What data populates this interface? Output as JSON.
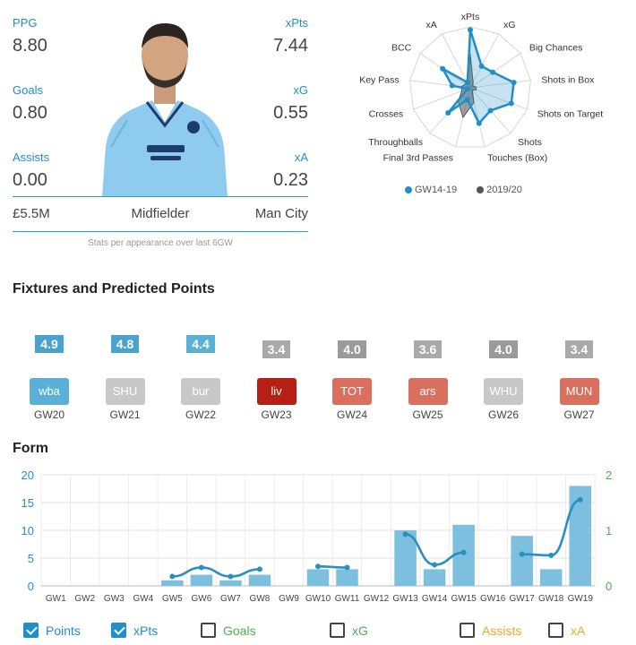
{
  "player": {
    "stats": {
      "ppg_label": "PPG",
      "ppg": "8.80",
      "xpts_label": "xPts",
      "xpts": "7.44",
      "goals_label": "Goals",
      "goals": "0.80",
      "xg_label": "xG",
      "xg": "0.55",
      "assists_label": "Assists",
      "assists": "0.00",
      "xa_label": "xA",
      "xa": "0.23"
    },
    "price": "£5.5M",
    "position": "Midfielder",
    "team": "Man City",
    "footnote": "Stats per appearance over last 6GW"
  },
  "radar": {
    "axes": [
      "xPts",
      "xG",
      "Big Chances",
      "Shots in Box",
      "Shots on Target",
      "Shots",
      "Touches (Box)",
      "Final 3rd Passes",
      "Throughballs",
      "Crosses",
      "Key Pass",
      "BCC",
      "xA"
    ],
    "series": [
      {
        "name": "GW14-19",
        "color": "#1f8ec9",
        "values": [
          0.95,
          0.4,
          0.45,
          0.72,
          0.72,
          0.5,
          0.6,
          0.2,
          0.55,
          0.05,
          0.3,
          0.55,
          0.1
        ]
      },
      {
        "name": "2019/20",
        "color": "#555555",
        "values": [
          0.55,
          0.1,
          0.05,
          0.1,
          0.1,
          0.05,
          0.25,
          0.5,
          0.3,
          0.15,
          0.15,
          0.1,
          0.1
        ]
      }
    ]
  },
  "fixtures_title": "Fixtures and Predicted Points",
  "fixtures": [
    {
      "pred": "4.9",
      "pred_color": "#4aa3cf",
      "opp": "wba",
      "opp_color": "#5ab0d6",
      "gw": "GW20"
    },
    {
      "pred": "4.8",
      "pred_color": "#4aa3cf",
      "opp": "SHU",
      "opp_color": "#c8c8c8",
      "gw": "GW21"
    },
    {
      "pred": "4.4",
      "pred_color": "#5bb0d6",
      "opp": "bur",
      "opp_color": "#c8c8c8",
      "gw": "GW22"
    },
    {
      "pred": "3.4",
      "pred_color": "#a9a9a9",
      "opp": "liv",
      "opp_color": "#b51f14",
      "gw": "GW23"
    },
    {
      "pred": "4.0",
      "pred_color": "#9a9a9a",
      "opp": "TOT",
      "opp_color": "#d9705f",
      "gw": "GW24"
    },
    {
      "pred": "3.6",
      "pred_color": "#a9a9a9",
      "opp": "ars",
      "opp_color": "#d9705f",
      "gw": "GW25"
    },
    {
      "pred": "4.0",
      "pred_color": "#9a9a9a",
      "opp": "WHU",
      "opp_color": "#c8c8c8",
      "gw": "GW26"
    },
    {
      "pred": "3.4",
      "pred_color": "#a9a9a9",
      "opp": "MUN",
      "opp_color": "#d9705f",
      "gw": "GW27"
    }
  ],
  "form_title": "Form",
  "chart_data": {
    "type": "bar",
    "categories": [
      "GW1",
      "GW2",
      "GW3",
      "GW4",
      "GW5",
      "GW6",
      "GW7",
      "GW8",
      "GW9",
      "GW10",
      "GW11",
      "GW12",
      "GW13",
      "GW14",
      "GW15",
      "GW16",
      "GW17",
      "GW18",
      "GW19"
    ],
    "series": [
      {
        "name": "Points",
        "type": "bar",
        "color": "#6fb8db",
        "axis": "left",
        "values": [
          0,
          0,
          0,
          0,
          1,
          2,
          1,
          2,
          0,
          3,
          3,
          0,
          10,
          3,
          11,
          0,
          9,
          3,
          18
        ]
      },
      {
        "name": "xPts",
        "type": "line",
        "color": "#2a8fc0",
        "axis": "right",
        "values": [
          null,
          null,
          null,
          null,
          0.17,
          0.33,
          0.17,
          0.3,
          null,
          0.35,
          0.33,
          null,
          0.93,
          0.38,
          0.6,
          null,
          0.57,
          0.55,
          1.55
        ]
      }
    ],
    "y_left": {
      "ticks": [
        "0",
        "5",
        "10",
        "15",
        "20"
      ],
      "lim": [
        0,
        20
      ],
      "color": "#1f8ec9"
    },
    "y_right": {
      "ticks": [
        "0",
        "1",
        "2"
      ],
      "lim": [
        0,
        2
      ],
      "color": "#4caf50"
    },
    "grid": true
  },
  "legend": [
    {
      "label": "Points",
      "checked": true,
      "color": "#1f8ec9"
    },
    {
      "label": "xPts",
      "checked": true,
      "color": "#1f8ec9"
    },
    {
      "label": "Goals",
      "checked": false,
      "color": "#4caf50"
    },
    {
      "label": "xG",
      "checked": false,
      "color": "#4caf50"
    },
    {
      "label": "Assists",
      "checked": false,
      "color": "#f5a623"
    },
    {
      "label": "xA",
      "checked": false,
      "color": "#f5a623"
    }
  ]
}
